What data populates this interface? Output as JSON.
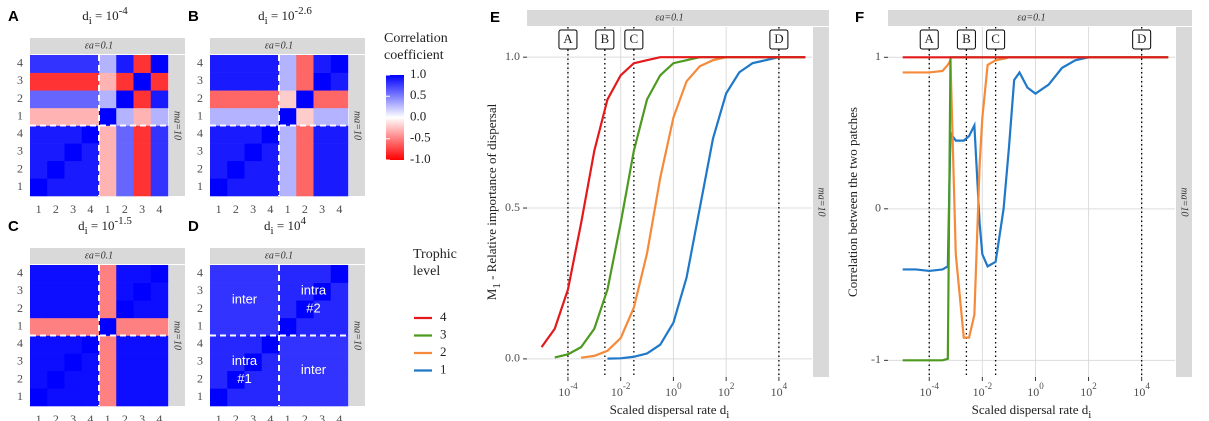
{
  "chart_data": [
    {
      "type": "heatmap",
      "panel": "A",
      "title": [
        "d",
        "i",
        " = 10",
        "-4"
      ],
      "strip_top": "εa=0.1",
      "strip_right": "ma=10",
      "x_categories": [
        "1",
        "2",
        "3",
        "4",
        "1",
        "2",
        "3",
        "4"
      ],
      "y_categories": [
        "1",
        "2",
        "3",
        "4",
        "1",
        "2",
        "3",
        "4"
      ],
      "z": [
        [
          1,
          0.9,
          0.9,
          0.9,
          -0.3,
          0.6,
          -0.8,
          0.8
        ],
        [
          0.9,
          1,
          0.9,
          0.9,
          -0.3,
          0.6,
          -0.8,
          0.8
        ],
        [
          0.9,
          0.9,
          1,
          0.9,
          -0.3,
          0.6,
          -0.8,
          0.8
        ],
        [
          0.9,
          0.9,
          0.9,
          1,
          -0.3,
          0.6,
          -0.8,
          0.8
        ],
        [
          -0.3,
          -0.3,
          -0.3,
          -0.3,
          1,
          0.3,
          -0.3,
          0.3
        ],
        [
          0.6,
          0.6,
          0.6,
          0.6,
          0.3,
          1,
          -0.8,
          0.9
        ],
        [
          -0.8,
          -0.8,
          -0.8,
          -0.8,
          -0.3,
          -0.8,
          1,
          -0.8
        ],
        [
          0.8,
          0.8,
          0.8,
          0.8,
          0.3,
          0.9,
          -0.8,
          1
        ]
      ]
    },
    {
      "type": "heatmap",
      "panel": "B",
      "title": [
        "d",
        "i",
        " = 10",
        "-2.6"
      ],
      "strip_top": "εa=0.1",
      "strip_right": "ma=10",
      "x_categories": [
        "1",
        "2",
        "3",
        "4",
        "1",
        "2",
        "3",
        "4"
      ],
      "y_categories": [
        "1",
        "2",
        "3",
        "4",
        "1",
        "2",
        "3",
        "4"
      ],
      "z": [
        [
          1,
          0.9,
          0.9,
          0.9,
          0.3,
          -0.6,
          0.9,
          0.9
        ],
        [
          0.9,
          1,
          0.9,
          0.9,
          0.3,
          -0.6,
          0.9,
          0.9
        ],
        [
          0.9,
          0.9,
          1,
          0.9,
          0.3,
          -0.6,
          0.9,
          0.9
        ],
        [
          0.9,
          0.9,
          0.9,
          1,
          0.3,
          -0.6,
          0.9,
          0.9
        ],
        [
          0.3,
          0.3,
          0.3,
          0.3,
          1,
          -0.2,
          0.3,
          0.3
        ],
        [
          -0.6,
          -0.6,
          -0.6,
          -0.6,
          -0.2,
          1,
          -0.6,
          -0.6
        ],
        [
          0.9,
          0.9,
          0.9,
          0.9,
          0.3,
          -0.6,
          1,
          0.9
        ],
        [
          0.9,
          0.9,
          0.9,
          0.9,
          0.3,
          -0.6,
          0.9,
          1
        ]
      ]
    },
    {
      "type": "heatmap",
      "panel": "C",
      "title": [
        "d",
        "i",
        " = 10",
        "-1.5"
      ],
      "strip_top": "εa=0.1",
      "strip_right": "ma=10",
      "x_categories": [
        "1",
        "2",
        "3",
        "4",
        "1",
        "2",
        "3",
        "4"
      ],
      "y_categories": [
        "1",
        "2",
        "3",
        "4",
        "1",
        "2",
        "3",
        "4"
      ],
      "z": [
        [
          1,
          0.95,
          0.95,
          0.95,
          -0.5,
          0.95,
          0.95,
          0.95
        ],
        [
          0.95,
          1,
          0.95,
          0.95,
          -0.5,
          0.95,
          0.95,
          0.95
        ],
        [
          0.95,
          0.95,
          1,
          0.95,
          -0.5,
          0.95,
          0.95,
          0.95
        ],
        [
          0.95,
          0.95,
          0.95,
          1,
          -0.5,
          0.95,
          0.95,
          0.95
        ],
        [
          -0.5,
          -0.5,
          -0.5,
          -0.5,
          1,
          -0.5,
          -0.5,
          -0.5
        ],
        [
          0.95,
          0.95,
          0.95,
          0.95,
          -0.5,
          1,
          0.95,
          0.95
        ],
        [
          0.95,
          0.95,
          0.95,
          0.95,
          -0.5,
          0.95,
          1,
          0.95
        ],
        [
          0.95,
          0.95,
          0.95,
          0.95,
          -0.5,
          0.95,
          0.95,
          1
        ]
      ]
    },
    {
      "type": "heatmap",
      "panel": "D",
      "title": [
        "d",
        "i",
        " = 10",
        "4"
      ],
      "strip_top": "εa=0.1",
      "strip_right": "ma=10",
      "x_categories": [
        "1",
        "2",
        "3",
        "4",
        "1",
        "2",
        "3",
        "4"
      ],
      "y_categories": [
        "1",
        "2",
        "3",
        "4",
        "1",
        "2",
        "3",
        "4"
      ],
      "annotations": [
        [
          "inter"
        ],
        [
          "intra",
          "#2"
        ],
        [
          "intra",
          "#1"
        ],
        [
          "inter"
        ]
      ],
      "z": [
        [
          1,
          0.85,
          0.85,
          0.85,
          0.8,
          0.8,
          0.8,
          0.8
        ],
        [
          0.85,
          1,
          0.85,
          0.85,
          0.8,
          0.8,
          0.8,
          0.8
        ],
        [
          0.85,
          0.85,
          1,
          0.85,
          0.8,
          0.8,
          0.8,
          0.8
        ],
        [
          0.85,
          0.85,
          0.85,
          1,
          0.8,
          0.8,
          0.8,
          0.8
        ],
        [
          0.8,
          0.8,
          0.8,
          0.8,
          1,
          0.85,
          0.85,
          0.85
        ],
        [
          0.8,
          0.8,
          0.8,
          0.8,
          0.85,
          1,
          0.85,
          0.85
        ],
        [
          0.8,
          0.8,
          0.8,
          0.8,
          0.85,
          0.85,
          1,
          0.85
        ],
        [
          0.8,
          0.8,
          0.8,
          0.8,
          0.85,
          0.85,
          0.85,
          1
        ]
      ]
    },
    {
      "type": "line",
      "panel": "E",
      "strip_top": "εa=0.1",
      "strip_right": "ma=10",
      "xlabel": [
        "Scaled dispersal rate ",
        "d",
        "i"
      ],
      "ylabel": [
        "M",
        "1",
        " - Relative importance of dispersal"
      ],
      "xlog": true,
      "xlim": [
        2.8e-06,
        180000
      ],
      "ylim": [
        -0.06,
        1.1
      ],
      "grid": true,
      "legend_title": "Trophic level",
      "xticks": [
        {
          "value": 0.0001,
          "label": [
            "10",
            "-4"
          ]
        },
        {
          "value": 0.01,
          "label": [
            "10",
            "-2"
          ]
        },
        {
          "value": 1,
          "label": [
            "10",
            "0"
          ]
        },
        {
          "value": 100,
          "label": [
            "10",
            "2"
          ]
        },
        {
          "value": 10000,
          "label": [
            "10",
            "4"
          ]
        }
      ],
      "yticks": [
        {
          "value": 0,
          "label": "0.0"
        },
        0.5,
        {
          "value": 1,
          "label": "1.0"
        }
      ],
      "vlines": [
        {
          "x": 0.0001,
          "label": "A"
        },
        {
          "x": 0.00251,
          "label": "B"
        },
        {
          "x": 0.0316,
          "label": "C"
        },
        {
          "x": 10000,
          "label": "D"
        }
      ],
      "x": [
        1e-05,
        3.16e-05,
        0.0001,
        0.000316,
        0.001,
        0.00316,
        0.01,
        0.0316,
        0.1,
        0.316,
        1,
        3.16,
        10,
        31.6,
        100,
        316,
        1000,
        3160,
        10000,
        31600,
        100000
      ],
      "series": [
        {
          "name": "4",
          "color": "#e31a1c",
          "values": [
            0.039,
            0.1,
            0.23,
            0.45,
            0.69,
            0.86,
            0.94,
            0.98,
            0.99,
            1,
            1,
            1,
            1,
            1,
            1,
            1,
            1,
            1,
            1,
            1,
            1
          ]
        },
        {
          "name": "3",
          "color": "#4d9a1f",
          "values": [
            null,
            0.005,
            0.015,
            0.039,
            0.1,
            0.23,
            0.45,
            0.69,
            0.86,
            0.94,
            0.98,
            0.99,
            1,
            1,
            1,
            1,
            1,
            1,
            1,
            1,
            1
          ]
        },
        {
          "name": "2",
          "color": "#f58a3a",
          "values": [
            null,
            null,
            null,
            0.004,
            0.01,
            0.027,
            0.069,
            0.17,
            0.35,
            0.6,
            0.8,
            0.92,
            0.97,
            0.99,
            1,
            1,
            1,
            1,
            1,
            1,
            1
          ]
        },
        {
          "name": "1",
          "color": "#1f78c8",
          "values": [
            null,
            null,
            null,
            null,
            null,
            0.001,
            0.002,
            0.007,
            0.018,
            0.047,
            0.12,
            0.27,
            0.5,
            0.73,
            0.88,
            0.95,
            0.98,
            0.99,
            1,
            1,
            1
          ]
        }
      ]
    },
    {
      "type": "line",
      "panel": "F",
      "strip_top": "εa=0.1",
      "strip_right": "ma=10",
      "xlabel": [
        "Scaled dispersal rate ",
        "d",
        "i"
      ],
      "ylabel": [
        "Correlation between the two patches"
      ],
      "xlog": true,
      "xlim": [
        2.8e-06,
        180000
      ],
      "ylim": [
        -1.11,
        1.2
      ],
      "grid": true,
      "xticks": [
        {
          "value": 0.0001,
          "label": [
            "10",
            "-4"
          ]
        },
        {
          "value": 0.01,
          "label": [
            "10",
            "-2"
          ]
        },
        {
          "value": 1,
          "label": [
            "10",
            "0"
          ]
        },
        {
          "value": 100,
          "label": [
            "10",
            "2"
          ]
        },
        {
          "value": 10000,
          "label": [
            "10",
            "4"
          ]
        }
      ],
      "yticks": [
        -1,
        0,
        1
      ],
      "vlines": [
        {
          "x": 0.0001,
          "label": "A"
        },
        {
          "x": 0.00251,
          "label": "B"
        },
        {
          "x": 0.0316,
          "label": "C"
        },
        {
          "x": 10000,
          "label": "D"
        }
      ],
      "x": [
        1e-05,
        3.16e-05,
        0.0001,
        0.000316,
        0.000501,
        0.000631,
        0.001,
        0.002,
        0.00316,
        0.00501,
        0.00794,
        0.01,
        0.0158,
        0.0316,
        0.0631,
        0.1,
        0.158,
        0.251,
        0.501,
        1,
        3.16,
        10,
        31.6,
        100,
        1000,
        10000,
        100000
      ],
      "series": [
        {
          "color": "#e31a1c",
          "values": [
            1,
            1,
            1,
            1,
            1,
            1,
            1,
            1,
            1,
            1,
            1,
            1,
            1,
            1,
            1,
            1,
            1,
            1,
            1,
            1,
            1,
            1,
            1,
            1,
            1,
            1,
            1
          ]
        },
        {
          "color": "#4d9a1f",
          "values": [
            -1,
            -1,
            -1,
            -1,
            -0.99,
            1,
            1,
            1,
            1,
            1,
            1,
            1,
            1,
            1,
            1,
            1,
            1,
            1,
            1,
            1,
            1,
            1,
            1,
            1,
            1,
            1,
            1
          ]
        },
        {
          "color": "#f58a3a",
          "values": [
            0.9,
            0.9,
            0.9,
            0.91,
            0.95,
            0.98,
            -0.3,
            -0.85,
            -0.85,
            -0.7,
            0.3,
            0.6,
            0.95,
            0.98,
            0.99,
            1,
            1,
            1,
            1,
            1,
            1,
            1,
            1,
            1,
            1,
            1,
            1
          ]
        },
        {
          "color": "#1f78c8",
          "values": [
            -0.4,
            -0.4,
            -0.41,
            -0.4,
            -0.38,
            0.5,
            0.45,
            0.45,
            0.48,
            0.55,
            -0.1,
            -0.3,
            -0.38,
            -0.35,
            0,
            0.4,
            0.85,
            0.9,
            0.8,
            0.76,
            0.82,
            0.93,
            0.98,
            1,
            1,
            1,
            1
          ]
        }
      ]
    }
  ],
  "colorbar": {
    "title": "Correlation coefficient",
    "lim": [
      -1,
      1
    ],
    "colors": [
      "#ff0000",
      "#ffffff",
      "#0000ff"
    ],
    "ticks": [
      {
        "value": 1,
        "label": "1.0"
      },
      0.5,
      {
        "value": 0,
        "label": "0.0"
      },
      -0.5,
      {
        "value": -1,
        "label": "-1.0"
      }
    ]
  }
}
